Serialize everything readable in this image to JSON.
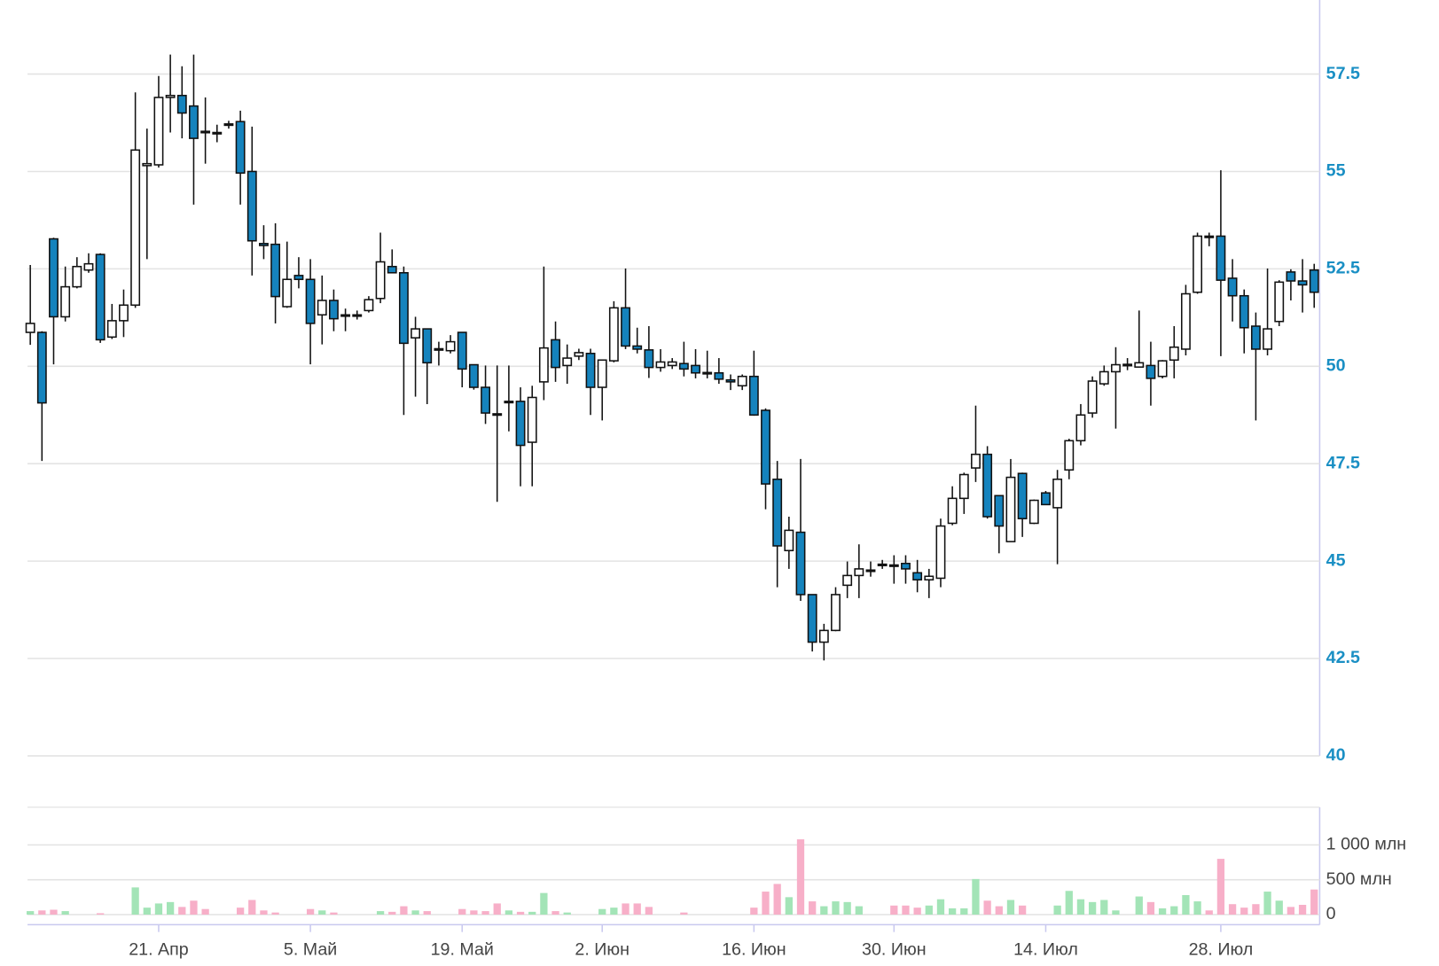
{
  "chart_data": {
    "type": "candlestick",
    "categories": [
      null,
      null,
      null,
      null,
      null,
      null,
      null,
      null,
      null,
      null,
      null,
      "21. Апр",
      null,
      null,
      null,
      null,
      null,
      null,
      null,
      null,
      null,
      null,
      null,
      null,
      "5. Май",
      null,
      null,
      null,
      null,
      null,
      null,
      null,
      null,
      null,
      null,
      null,
      null,
      "19. Май",
      null,
      null,
      null,
      null,
      null,
      null,
      null,
      null,
      null,
      null,
      null,
      "2. Июн",
      null,
      null,
      null,
      null,
      null,
      null,
      null,
      null,
      null,
      null,
      null,
      null,
      "16. Июн",
      null,
      null,
      null,
      null,
      null,
      null,
      null,
      null,
      null,
      null,
      null,
      "30. Июн",
      null,
      null,
      null,
      null,
      null,
      null,
      null,
      null,
      null,
      null,
      null,
      null,
      "14. Июл",
      null,
      null,
      null,
      null,
      null,
      null,
      null,
      null,
      null,
      null,
      null,
      null,
      null,
      null,
      "28. Июл",
      null,
      null,
      null,
      null,
      null,
      null,
      null,
      null
    ],
    "open": [
      50.87,
      50.87,
      53.27,
      51.27,
      52.04,
      52.47,
      52.87,
      50.75,
      51.17,
      51.57,
      55.15,
      55.17,
      56.9,
      56.95,
      56.68,
      56.03,
      56.0,
      56.2,
      56.28,
      55.0,
      53.15,
      53.13,
      51.53,
      52.33,
      52.23,
      51.32,
      51.69,
      51.32,
      51.3,
      51.43,
      51.74,
      52.56,
      52.4,
      50.73,
      50.96,
      50.43,
      50.4,
      50.87,
      50.04,
      49.46,
      48.78,
      49.08,
      49.1,
      48.05,
      49.6,
      50.68,
      50.02,
      50.26,
      50.33,
      49.46,
      50.14,
      51.5,
      50.52,
      50.42,
      49.97,
      50.02,
      50.07,
      50.02,
      49.84,
      49.83,
      49.65,
      49.5,
      49.74,
      48.87,
      47.1,
      45.27,
      45.74,
      44.14,
      42.92,
      43.22,
      44.38,
      44.63,
      44.74,
      44.9,
      44.9,
      44.94,
      44.7,
      44.52,
      44.56,
      45.97,
      46.61,
      47.39,
      47.74,
      46.68,
      45.5,
      47.25,
      45.97,
      46.75,
      46.37,
      47.34,
      48.09,
      48.8,
      49.55,
      49.86,
      50.02,
      49.98,
      50.02,
      49.74,
      50.16,
      50.44,
      51.9,
      53.34,
      53.34,
      52.26,
      51.81,
      51.03,
      50.44,
      51.15,
      52.42,
      52.19,
      52.47
    ],
    "high": [
      52.6,
      50.9,
      53.3,
      52.56,
      52.8,
      52.9,
      52.9,
      51.6,
      51.97,
      57.03,
      56.1,
      57.45,
      58.0,
      57.7,
      58.0,
      56.9,
      56.2,
      56.3,
      56.56,
      56.15,
      53.62,
      53.67,
      53.2,
      52.8,
      52.75,
      52.33,
      51.97,
      51.48,
      51.43,
      51.8,
      53.43,
      53.0,
      52.56,
      51.27,
      50.97,
      50.63,
      50.8,
      50.88,
      50.05,
      50.02,
      50.02,
      50.02,
      49.46,
      49.5,
      52.56,
      51.15,
      50.56,
      50.45,
      50.45,
      50.17,
      51.67,
      52.51,
      50.99,
      51.03,
      50.44,
      50.21,
      50.63,
      50.44,
      50.4,
      50.21,
      49.79,
      49.79,
      50.4,
      48.92,
      47.57,
      46.14,
      47.62,
      44.15,
      43.39,
      44.33,
      44.99,
      45.43,
      44.99,
      45.03,
      45.15,
      45.15,
      45.03,
      44.8,
      46.09,
      46.92,
      47.27,
      48.99,
      47.95,
      46.69,
      47.62,
      47.27,
      46.58,
      46.8,
      47.34,
      48.14,
      49.03,
      49.74,
      50.02,
      50.49,
      50.21,
      51.43,
      50.63,
      50.16,
      51.03,
      52.09,
      53.43,
      53.43,
      55.03,
      52.75,
      51.97,
      51.38,
      52.51,
      52.21,
      52.49,
      52.75,
      52.63
    ],
    "low": [
      50.55,
      47.57,
      50.05,
      51.15,
      52.0,
      52.4,
      50.6,
      50.7,
      50.75,
      51.5,
      52.75,
      55.1,
      56.0,
      55.85,
      54.15,
      55.2,
      55.75,
      56.1,
      54.15,
      52.33,
      52.75,
      51.1,
      51.5,
      52.0,
      50.05,
      50.56,
      50.9,
      50.9,
      51.2,
      51.38,
      51.62,
      52.4,
      48.75,
      49.22,
      49.03,
      50.02,
      50.33,
      49.46,
      49.4,
      48.52,
      46.52,
      48.33,
      46.92,
      46.92,
      49.13,
      49.6,
      49.55,
      50.16,
      48.75,
      48.61,
      50.1,
      50.44,
      50.33,
      49.7,
      49.86,
      49.93,
      49.74,
      49.69,
      49.69,
      49.55,
      49.39,
      49.39,
      48.73,
      46.33,
      44.33,
      44.8,
      43.98,
      42.68,
      42.45,
      43.2,
      44.05,
      44.05,
      44.6,
      44.8,
      44.42,
      44.42,
      44.2,
      44.05,
      44.33,
      45.92,
      46.21,
      47.03,
      46.09,
      45.2,
      45.49,
      45.62,
      45.95,
      46.44,
      44.92,
      47.1,
      47.97,
      48.68,
      49.5,
      48.4,
      49.9,
      49.97,
      48.99,
      49.69,
      49.69,
      50.28,
      51.86,
      53.08,
      50.26,
      51.15,
      50.33,
      48.61,
      50.28,
      51.03,
      51.69,
      51.38,
      51.5
    ],
    "close": [
      51.1,
      49.06,
      51.27,
      52.04,
      52.56,
      52.63,
      50.68,
      51.17,
      51.57,
      55.55,
      55.2,
      56.9,
      56.95,
      56.5,
      55.85,
      56.0,
      55.98,
      56.22,
      54.96,
      53.22,
      53.1,
      51.79,
      52.23,
      52.23,
      51.1,
      51.69,
      51.22,
      51.3,
      51.32,
      51.71,
      52.68,
      52.4,
      50.59,
      50.96,
      50.09,
      50.45,
      50.63,
      49.93,
      49.46,
      48.8,
      48.75,
      49.1,
      47.97,
      49.2,
      50.47,
      49.97,
      50.21,
      50.35,
      49.46,
      50.16,
      51.5,
      50.52,
      50.44,
      49.97,
      50.11,
      50.11,
      49.93,
      49.83,
      49.82,
      49.67,
      49.6,
      49.74,
      48.75,
      46.98,
      45.39,
      45.79,
      44.14,
      42.92,
      43.22,
      44.14,
      44.63,
      44.8,
      44.77,
      44.92,
      44.89,
      44.8,
      44.52,
      44.61,
      45.9,
      46.61,
      47.22,
      47.74,
      46.14,
      45.9,
      47.15,
      46.09,
      46.56,
      46.45,
      47.1,
      48.09,
      48.75,
      49.62,
      49.86,
      50.04,
      50.05,
      50.09,
      49.69,
      50.14,
      50.49,
      51.86,
      53.34,
      53.32,
      52.21,
      51.81,
      50.99,
      50.44,
      50.96,
      52.16,
      52.19,
      52.09,
      51.9
    ],
    "up_color": "#ffffff",
    "down_color": "#1583bd",
    "ylim": [
      40,
      59.4
    ],
    "yticks": [
      40,
      42.5,
      45,
      47.5,
      50,
      52.5,
      55,
      57.5
    ],
    "volume": {
      "values": [
        50,
        60,
        70,
        50,
        0,
        0,
        20,
        0,
        0,
        390,
        100,
        160,
        180,
        110,
        200,
        80,
        0,
        0,
        100,
        210,
        60,
        30,
        0,
        0,
        80,
        60,
        30,
        0,
        0,
        0,
        50,
        40,
        120,
        60,
        50,
        0,
        0,
        80,
        60,
        50,
        160,
        60,
        40,
        40,
        310,
        50,
        30,
        0,
        0,
        80,
        100,
        160,
        160,
        110,
        0,
        0,
        30,
        0,
        0,
        0,
        0,
        0,
        100,
        330,
        440,
        250,
        1080,
        190,
        120,
        190,
        180,
        120,
        0,
        0,
        130,
        130,
        100,
        130,
        220,
        90,
        90,
        510,
        200,
        120,
        210,
        130,
        0,
        0,
        130,
        340,
        220,
        180,
        210,
        60,
        0,
        260,
        180,
        90,
        120,
        280,
        190,
        60,
        800,
        150,
        100,
        150,
        330,
        200,
        110,
        140,
        360
      ],
      "up_color": "#a3e4b7",
      "down_color": "#f7afc8",
      "ylim": [
        0,
        1540
      ],
      "yticks": [
        0,
        {
          "value": 500,
          "label": "500 млн"
        },
        {
          "value": 1000,
          "label": "1 000 млн"
        }
      ]
    }
  }
}
